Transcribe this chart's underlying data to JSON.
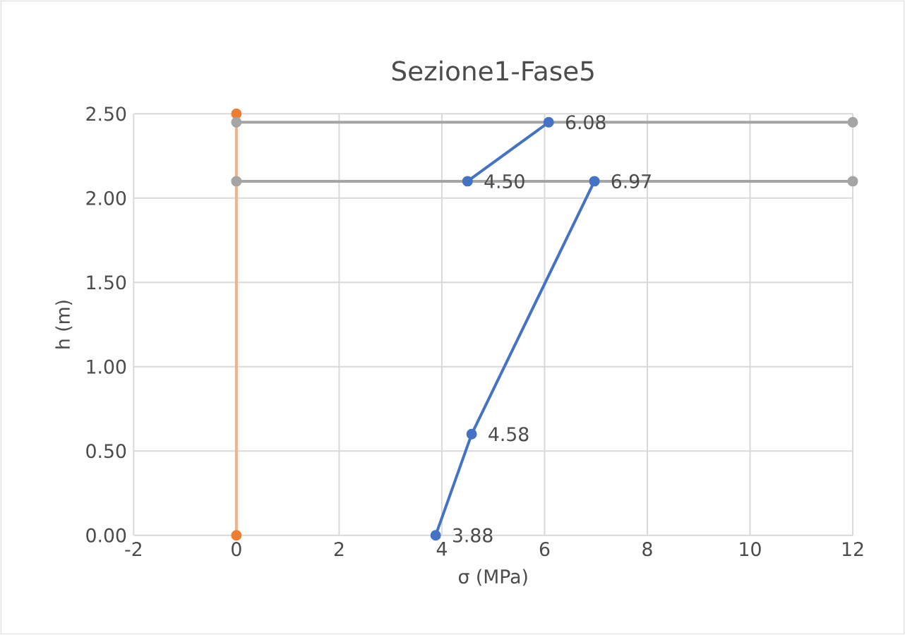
{
  "chart_data": {
    "type": "line",
    "title": "Sezione1-Fase5",
    "xlabel": "σ (MPa)",
    "ylabel": "h (m)",
    "xlim": [
      -2,
      12
    ],
    "ylim": [
      0,
      2.5
    ],
    "xticks": [
      -2,
      0,
      2,
      4,
      6,
      8,
      10,
      12
    ],
    "yticks": [
      {
        "value": 0,
        "label": "0.00"
      },
      {
        "value": 0.5,
        "label": "0.50"
      },
      {
        "value": 1,
        "label": "1.00"
      },
      {
        "value": 1.5,
        "label": "1.50"
      },
      {
        "value": 2,
        "label": "2.00"
      },
      {
        "value": 2.5,
        "label": "2.50"
      }
    ],
    "grid": true,
    "marker": "circle",
    "line_style": "solid",
    "series": [
      {
        "color": "#f4b183",
        "colors": [
          "#ed7d31",
          "#ed7d31"
        ],
        "x": [
          0,
          0
        ],
        "values": [
          0,
          2.5
        ]
      },
      {
        "color": "#a5a5a5",
        "x": [
          0,
          12
        ],
        "values": [
          2.45,
          2.45
        ]
      },
      {
        "color": "#a5a5a5",
        "x": [
          0,
          12
        ],
        "values": [
          2.1,
          2.1
        ]
      },
      {
        "color": "#4472c4",
        "x": [
          3.88,
          4.58,
          6.97
        ],
        "values": [
          0,
          0.6,
          2.1
        ]
      },
      {
        "color": "#4472c4",
        "x": [
          4.5,
          6.08
        ],
        "values": [
          2.1,
          2.45
        ]
      }
    ],
    "annotations": [
      {
        "text": "3.88",
        "x": 3.88,
        "y": 0
      },
      {
        "text": "4.58",
        "x": 4.58,
        "y": 0.6
      },
      {
        "text": "6.97",
        "x": 6.97,
        "y": 2.1
      },
      {
        "text": "4.50",
        "x": 4.5,
        "y": 2.1
      },
      {
        "text": "6.08",
        "x": 6.08,
        "y": 2.45
      }
    ]
  }
}
